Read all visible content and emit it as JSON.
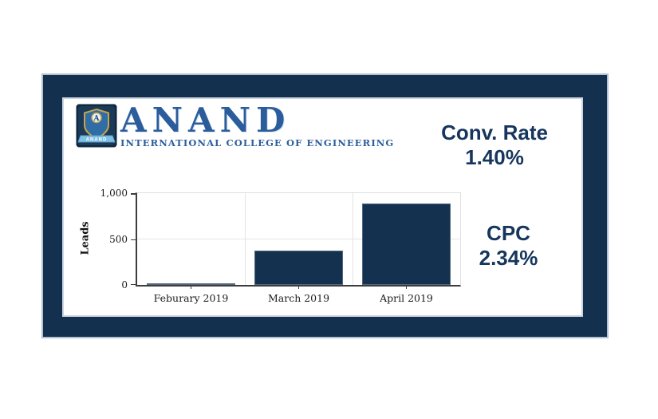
{
  "logo": {
    "title": "ANAND",
    "subtitle": "INTERNATIONAL COLLEGE OF ENGINEERING",
    "crest_letter": "A",
    "crest_banner": "ANAND",
    "title_color": "#2b5d9c"
  },
  "metrics": {
    "conv_rate": {
      "label": "Conv. Rate",
      "value": "1.40%"
    },
    "cpc": {
      "label": "CPC",
      "value": "2.34%"
    },
    "text_color": "#17365d"
  },
  "chart_data": {
    "type": "bar",
    "categories": [
      "Feburary 2019",
      "March 2019",
      "April 2019"
    ],
    "values": [
      10,
      375,
      890
    ],
    "title": "",
    "xlabel": "",
    "ylabel": "Leads",
    "ylim": [
      0,
      1000
    ],
    "yticks": [
      {
        "value": 0,
        "label": "0"
      },
      {
        "value": 500,
        "label": "500"
      },
      {
        "value": 1000,
        "label": "1,000"
      }
    ],
    "grid": true,
    "legend_position": "none",
    "bar_color": "#14324f"
  },
  "colors": {
    "frame_navy": "#13304e",
    "frame_border": "#b4c1d2",
    "card_border": "#ccd4df",
    "axis": "#3d3d3d"
  }
}
